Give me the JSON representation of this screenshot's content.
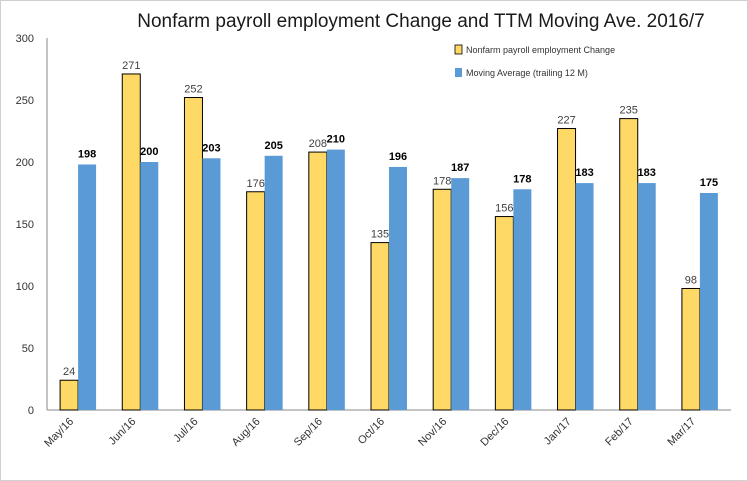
{
  "chart_data": {
    "type": "bar",
    "title": "Nonfarm payroll employment Change and TTM Moving Ave. 2016/7",
    "xlabel": "",
    "ylabel": "",
    "ylim": [
      0,
      300
    ],
    "yticks": [
      0,
      50,
      100,
      150,
      200,
      250,
      300
    ],
    "grid": false,
    "legend_position": "top-right",
    "categories": [
      "May/16",
      "Jun/16",
      "Jul/16",
      "Aug/16",
      "Sep/16",
      "Oct/16",
      "Nov/16",
      "Dec/16",
      "Jan/17",
      "Feb/17",
      "Mar/17"
    ],
    "series": [
      {
        "name": "Nonfarm payroll employment Change",
        "color": "#FFD966",
        "stroke": "#000000",
        "label_color": "#404040",
        "values": [
          24,
          271,
          252,
          176,
          208,
          135,
          178,
          156,
          227,
          235,
          98
        ]
      },
      {
        "name": "Moving Average (trailing 12 M)",
        "color": "#5B9BD5",
        "stroke": "none",
        "label_color": "#000000",
        "values": [
          198,
          200,
          203,
          205,
          210,
          196,
          187,
          178,
          183,
          183,
          175
        ]
      }
    ]
  }
}
